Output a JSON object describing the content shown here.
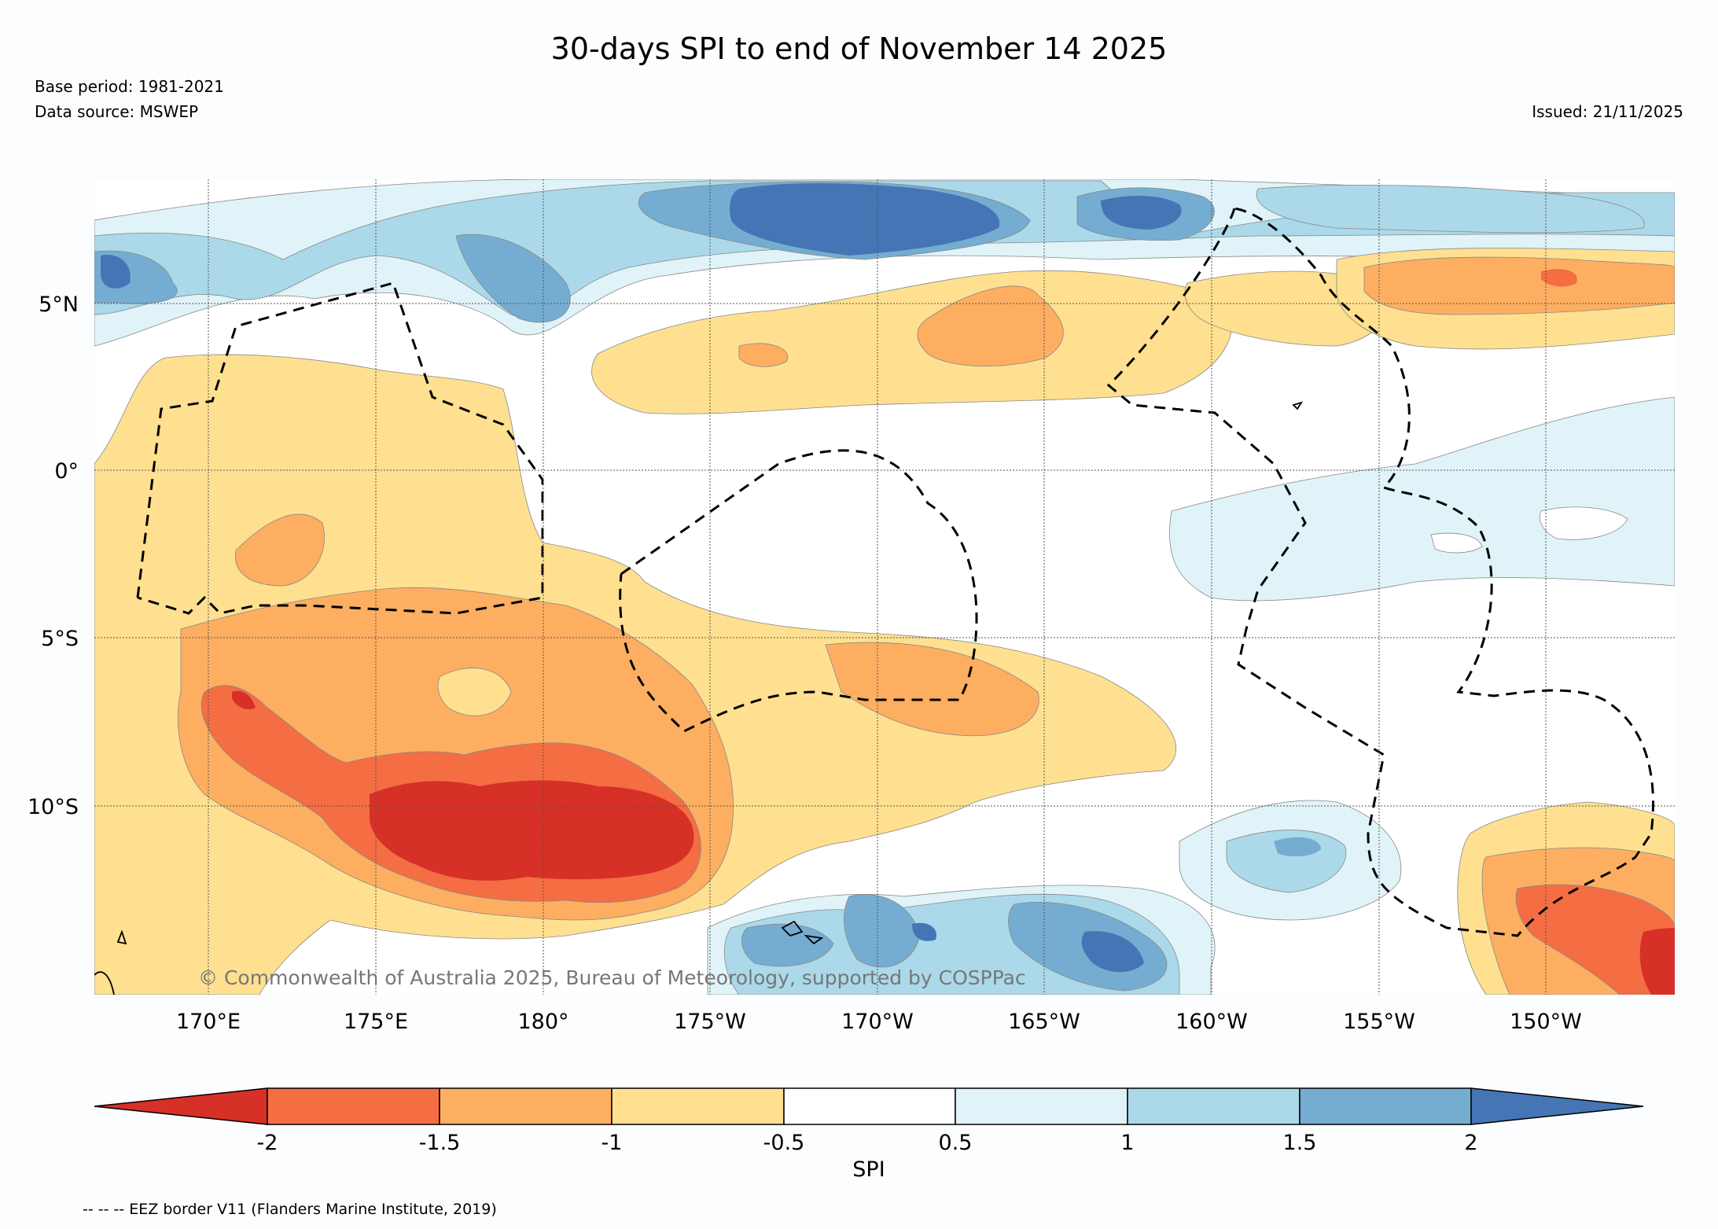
{
  "header": {
    "title": "30-days SPI to end of November 14 2025",
    "base_period": "Base period: 1981-2021",
    "data_source": "Data source: MSWEP",
    "issued": "Issued: 21/11/2025"
  },
  "map": {
    "lat_labels": [
      "5°N",
      "0°",
      "5°S",
      "10°S"
    ],
    "lon_labels": [
      "170°E",
      "175°E",
      "180°",
      "175°W",
      "170°W",
      "165°W",
      "160°W",
      "155°W",
      "150°W"
    ],
    "copyright": "© Commonwealth of Australia 2025, Bureau of Meteorology, supported by COSPPac"
  },
  "colorbar": {
    "label": "SPI",
    "ticks": [
      "-2",
      "-1.5",
      "-1",
      "-0.5",
      "0.5",
      "1",
      "1.5",
      "2"
    ],
    "colors": [
      "#d73027",
      "#f46d43",
      "#fdae61",
      "#fee090",
      "#ffffff",
      "#e0f3f8",
      "#abd9e9",
      "#74add1",
      "#4575b4"
    ]
  },
  "legend": {
    "eez_note": "-- -- -- EEZ border V11 (Flanders Marine Institute, 2019)"
  }
}
